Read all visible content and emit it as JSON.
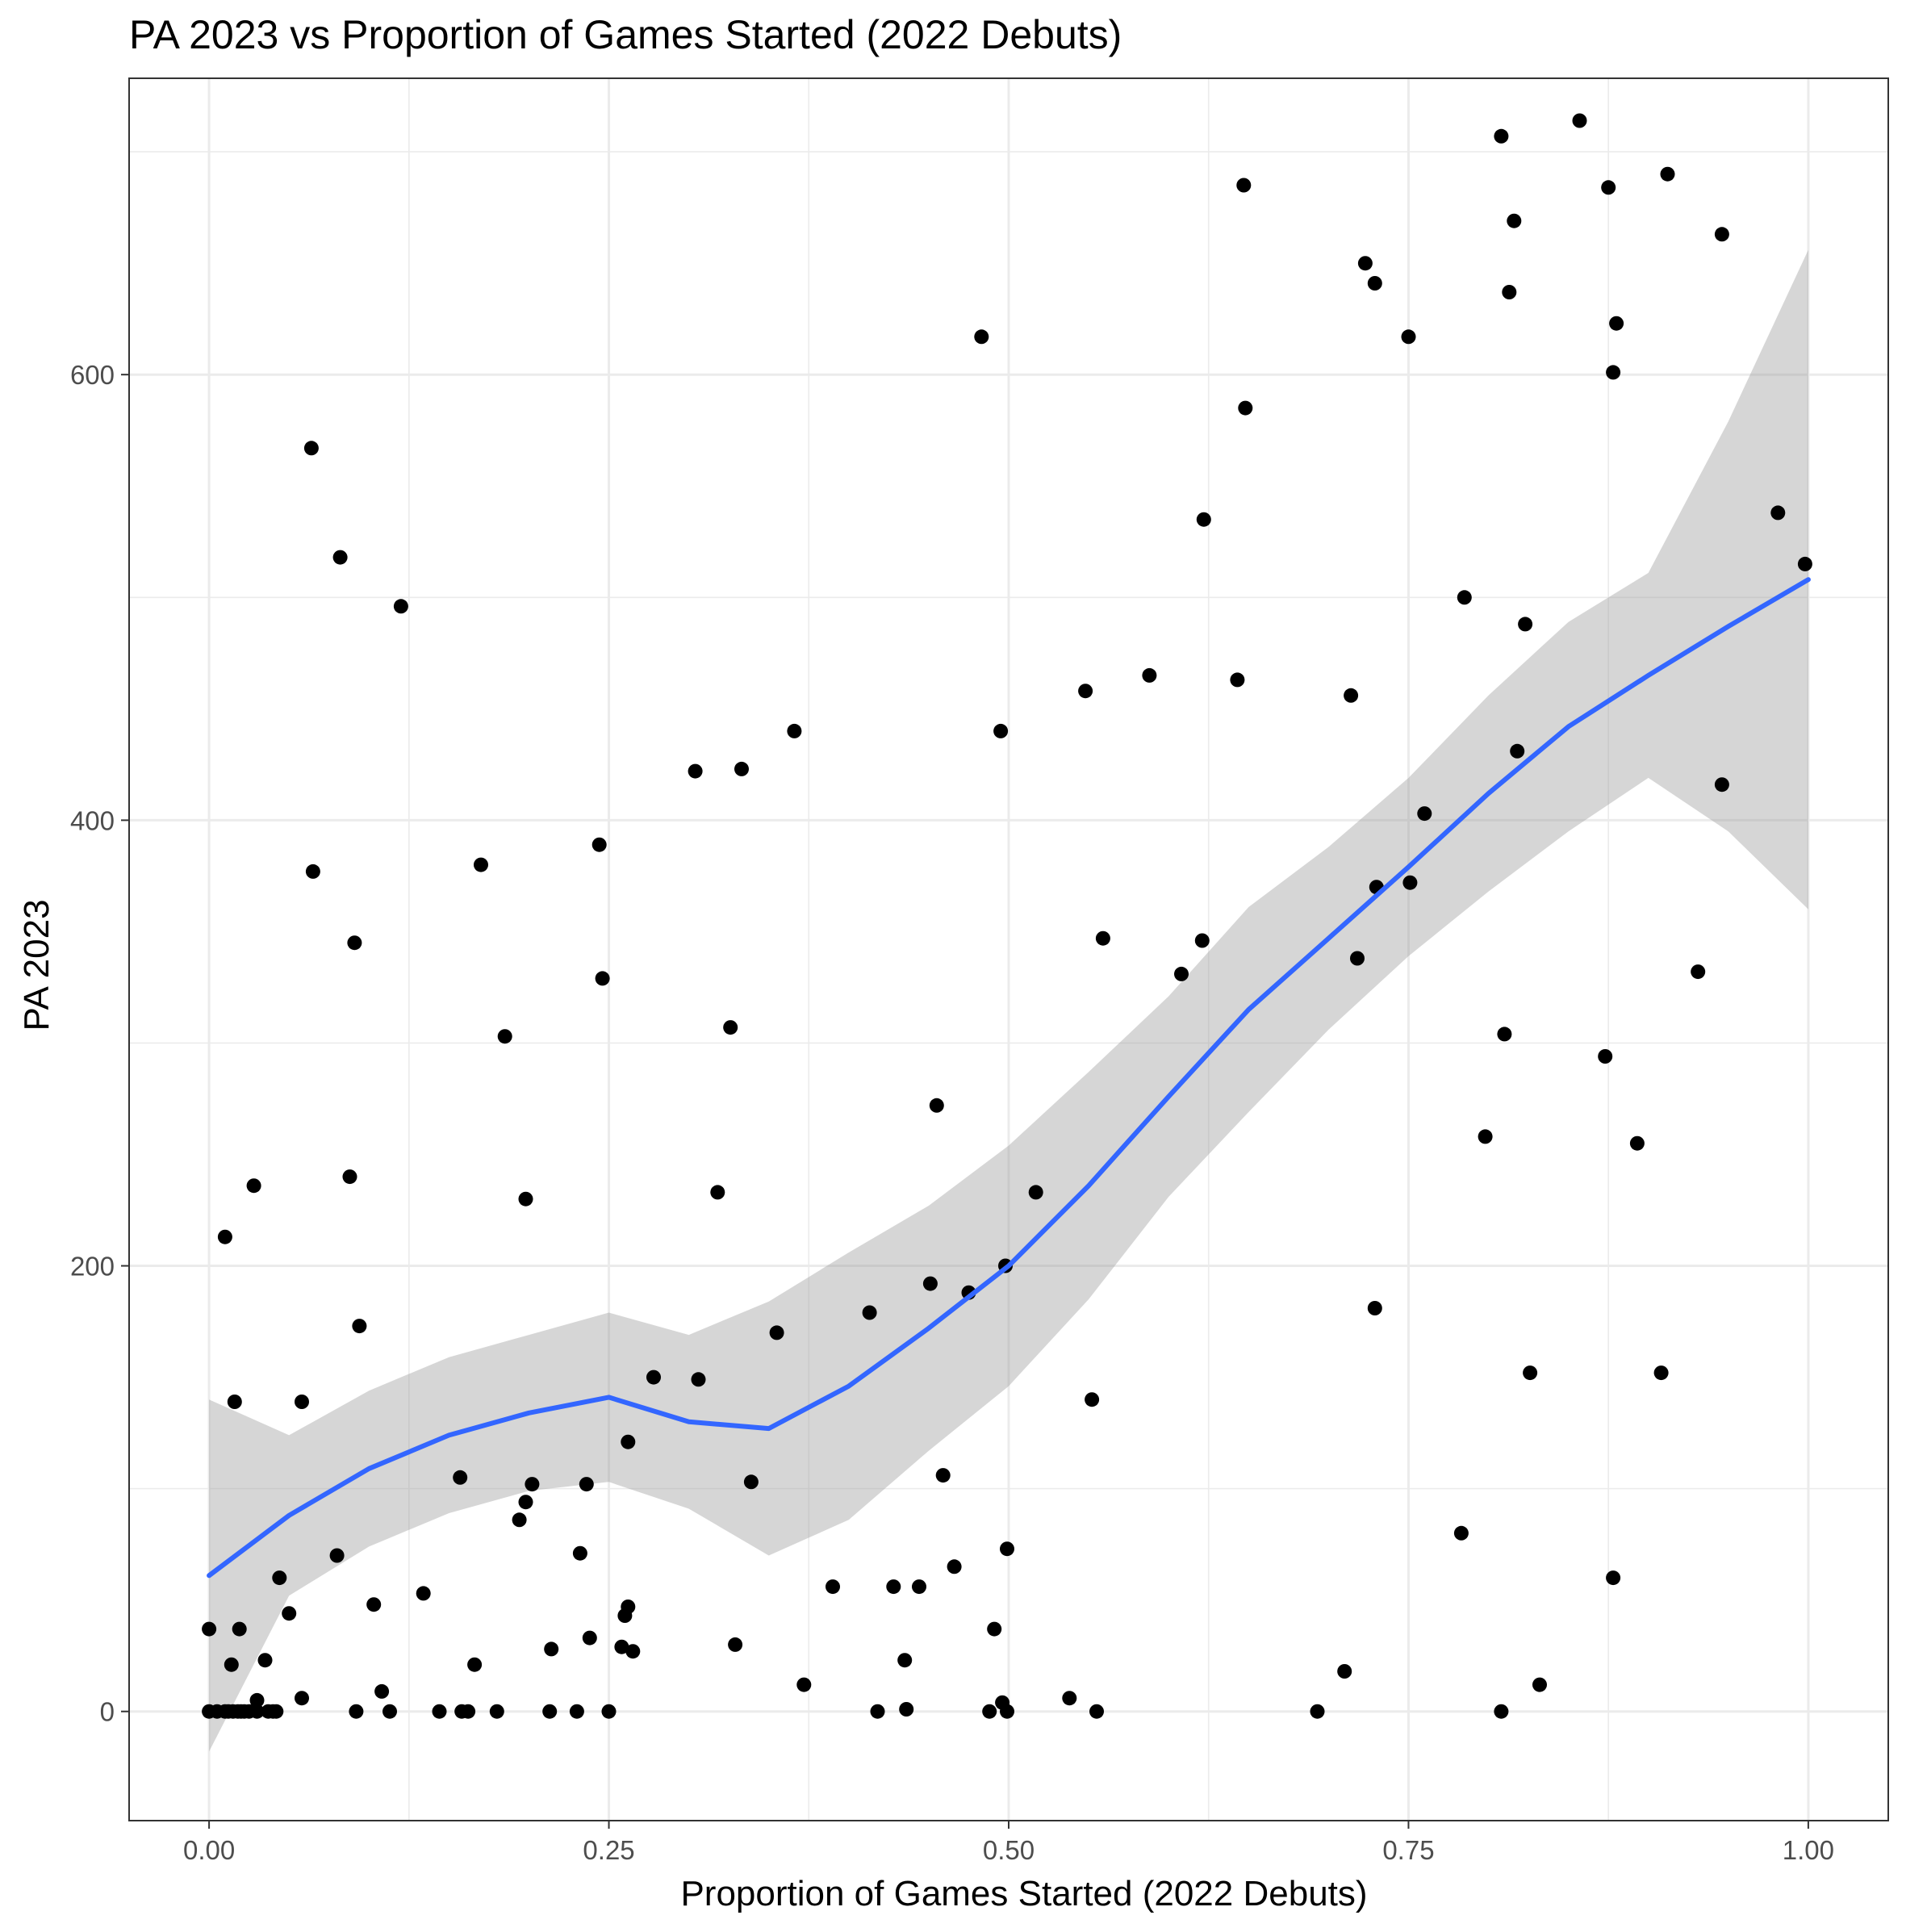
{
  "chart_data": {
    "type": "scatter",
    "title": "PA 2023 vs Proportion of Games Started (2022 Debuts)",
    "xlabel": "Proportion of Games Started (2022 Debuts)",
    "ylabel": "PA 2023",
    "xlim": [
      -0.05,
      1.05
    ],
    "ylim": [
      -49,
      733
    ],
    "x_ticks": [
      0.0,
      0.25,
      0.5,
      0.75,
      1.0
    ],
    "x_tick_labels": [
      "0.00",
      "0.25",
      "0.50",
      "0.75",
      "1.00"
    ],
    "y_ticks": [
      0,
      200,
      400,
      600
    ],
    "y_tick_labels": [
      "0",
      "200",
      "400",
      "600"
    ],
    "grid": true,
    "legend": "none",
    "colors": {
      "points": "#000000",
      "smooth": "#3366FF",
      "ribbon": "#999999",
      "grid": "#EBEBEB"
    },
    "points": [
      [
        0.0,
        0
      ],
      [
        0.0,
        37
      ],
      [
        0.005,
        0
      ],
      [
        0.01,
        0
      ],
      [
        0.01,
        213
      ],
      [
        0.012,
        0
      ],
      [
        0.014,
        21
      ],
      [
        0.015,
        0
      ],
      [
        0.016,
        139
      ],
      [
        0.018,
        0
      ],
      [
        0.019,
        37
      ],
      [
        0.02,
        0
      ],
      [
        0.022,
        0
      ],
      [
        0.025,
        0
      ],
      [
        0.028,
        236
      ],
      [
        0.03,
        0
      ],
      [
        0.03,
        5
      ],
      [
        0.035,
        23
      ],
      [
        0.037,
        0
      ],
      [
        0.04,
        0
      ],
      [
        0.042,
        0
      ],
      [
        0.044,
        60
      ],
      [
        0.05,
        44
      ],
      [
        0.058,
        6
      ],
      [
        0.058,
        139
      ],
      [
        0.064,
        567
      ],
      [
        0.065,
        377
      ],
      [
        0.08,
        70
      ],
      [
        0.082,
        518
      ],
      [
        0.088,
        240
      ],
      [
        0.091,
        345
      ],
      [
        0.092,
        0
      ],
      [
        0.094,
        173
      ],
      [
        0.103,
        48
      ],
      [
        0.108,
        9
      ],
      [
        0.113,
        0
      ],
      [
        0.12,
        496
      ],
      [
        0.134,
        53
      ],
      [
        0.144,
        0
      ],
      [
        0.157,
        105
      ],
      [
        0.158,
        0
      ],
      [
        0.162,
        0
      ],
      [
        0.166,
        21
      ],
      [
        0.17,
        380
      ],
      [
        0.18,
        0
      ],
      [
        0.185,
        303
      ],
      [
        0.194,
        86
      ],
      [
        0.198,
        94
      ],
      [
        0.198,
        230
      ],
      [
        0.202,
        102
      ],
      [
        0.213,
        0
      ],
      [
        0.214,
        28
      ],
      [
        0.23,
        0
      ],
      [
        0.232,
        71
      ],
      [
        0.236,
        102
      ],
      [
        0.238,
        33
      ],
      [
        0.244,
        389
      ],
      [
        0.246,
        329
      ],
      [
        0.25,
        0
      ],
      [
        0.258,
        29
      ],
      [
        0.26,
        43
      ],
      [
        0.262,
        121
      ],
      [
        0.262,
        47
      ],
      [
        0.265,
        27
      ],
      [
        0.278,
        150
      ],
      [
        0.304,
        422
      ],
      [
        0.306,
        149
      ],
      [
        0.318,
        233
      ],
      [
        0.326,
        307
      ],
      [
        0.329,
        30
      ],
      [
        0.333,
        423
      ],
      [
        0.339,
        103
      ],
      [
        0.355,
        170
      ],
      [
        0.366,
        440
      ],
      [
        0.372,
        12
      ],
      [
        0.39,
        56
      ],
      [
        0.413,
        179
      ],
      [
        0.418,
        0
      ],
      [
        0.428,
        56
      ],
      [
        0.435,
        23
      ],
      [
        0.436,
        1
      ],
      [
        0.444,
        56
      ],
      [
        0.451,
        192
      ],
      [
        0.455,
        272
      ],
      [
        0.459,
        106
      ],
      [
        0.466,
        65
      ],
      [
        0.475,
        188
      ],
      [
        0.483,
        617
      ],
      [
        0.488,
        0
      ],
      [
        0.491,
        37
      ],
      [
        0.495,
        440
      ],
      [
        0.496,
        4
      ],
      [
        0.498,
        200
      ],
      [
        0.499,
        0
      ],
      [
        0.499,
        73
      ],
      [
        0.517,
        233
      ],
      [
        0.538,
        6
      ],
      [
        0.548,
        458
      ],
      [
        0.552,
        140
      ],
      [
        0.555,
        0
      ],
      [
        0.559,
        347
      ],
      [
        0.588,
        465
      ],
      [
        0.608,
        331
      ],
      [
        0.621,
        346
      ],
      [
        0.622,
        535
      ],
      [
        0.643,
        463
      ],
      [
        0.647,
        685
      ],
      [
        0.648,
        585
      ],
      [
        0.693,
        0
      ],
      [
        0.71,
        18
      ],
      [
        0.714,
        456
      ],
      [
        0.718,
        338
      ],
      [
        0.723,
        650
      ],
      [
        0.729,
        641
      ],
      [
        0.729,
        181
      ],
      [
        0.73,
        370
      ],
      [
        0.75,
        617
      ],
      [
        0.751,
        372
      ],
      [
        0.76,
        403
      ],
      [
        0.783,
        80
      ],
      [
        0.785,
        500
      ],
      [
        0.798,
        258
      ],
      [
        0.808,
        0
      ],
      [
        0.808,
        707
      ],
      [
        0.81,
        304
      ],
      [
        0.813,
        637
      ],
      [
        0.816,
        669
      ],
      [
        0.818,
        431
      ],
      [
        0.823,
        488
      ],
      [
        0.826,
        152
      ],
      [
        0.832,
        12
      ],
      [
        0.857,
        714
      ],
      [
        0.873,
        294
      ],
      [
        0.875,
        684
      ],
      [
        0.878,
        601
      ],
      [
        0.878,
        60
      ],
      [
        0.88,
        623
      ],
      [
        0.893,
        255
      ],
      [
        0.908,
        152
      ],
      [
        0.912,
        690
      ],
      [
        0.931,
        332
      ],
      [
        0.946,
        663
      ],
      [
        0.946,
        416
      ],
      [
        0.981,
        538
      ],
      [
        0.998,
        515
      ]
    ],
    "smooth": {
      "method": "loess",
      "x": [
        0.0,
        0.05,
        0.1,
        0.15,
        0.2,
        0.25,
        0.3,
        0.35,
        0.4,
        0.45,
        0.5,
        0.55,
        0.6,
        0.65,
        0.7,
        0.75,
        0.8,
        0.85,
        0.9,
        0.95,
        1.0
      ],
      "y": [
        61,
        88,
        109,
        124,
        134,
        141,
        130,
        127,
        146,
        172,
        200,
        236,
        276,
        315,
        347,
        379,
        412,
        442,
        465,
        487,
        508
      ],
      "lower": [
        -18,
        52,
        74,
        89,
        99,
        103,
        91,
        70,
        86,
        117,
        146,
        185,
        231,
        269,
        306,
        339,
        368,
        395,
        419,
        395,
        360
      ],
      "upper": [
        140,
        124,
        144,
        159,
        169,
        179,
        169,
        184,
        206,
        227,
        254,
        287,
        321,
        361,
        388,
        419,
        456,
        489,
        511,
        579,
        656
      ]
    }
  }
}
